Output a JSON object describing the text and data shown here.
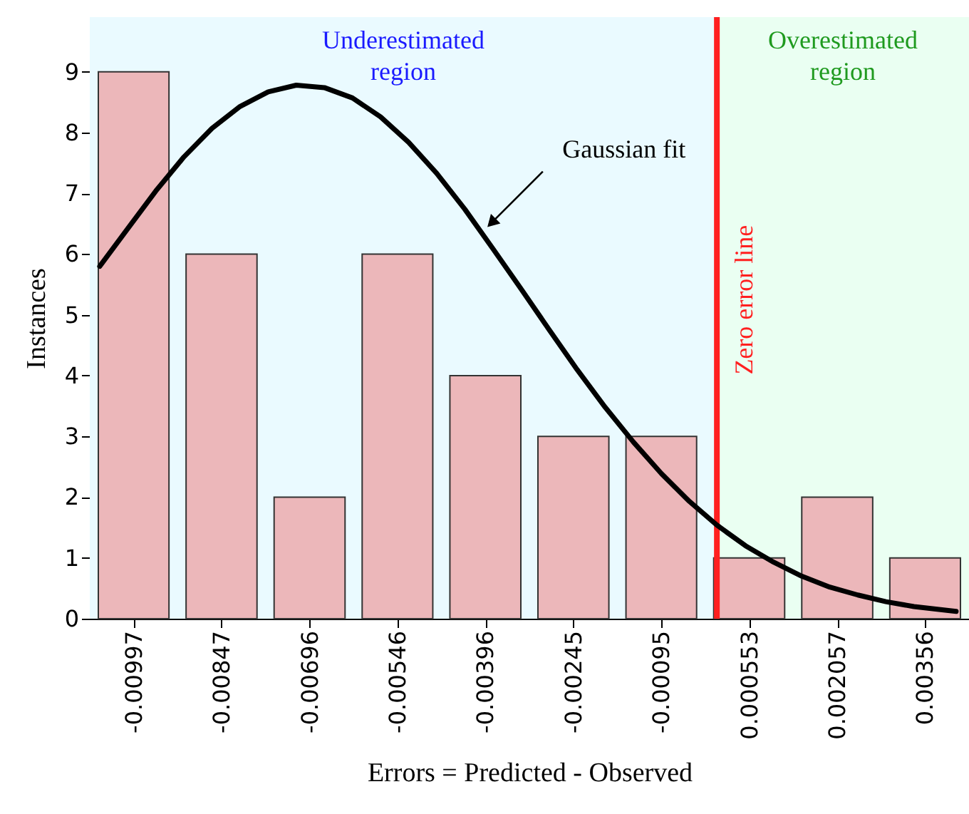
{
  "chart_data": {
    "type": "histogram",
    "xlabel": "Errors = Predicted - Observed",
    "ylabel": "Instances",
    "bins": [
      -0.01072,
      -0.00922,
      -0.007715,
      -0.00621,
      -0.00471,
      -0.003205,
      -0.0017,
      -0.0002,
      0.001305,
      0.00281,
      0.00431
    ],
    "values": [
      9,
      6,
      2,
      6,
      4,
      3,
      3,
      1,
      2,
      1
    ],
    "color": "#ecb7ba",
    "xlim": [
      -0.01072,
      0.00431
    ],
    "ylim": [
      0,
      9.9
    ],
    "xticks": [
      -0.00997,
      -0.00847,
      -0.00696,
      -0.00546,
      -0.00396,
      -0.00245,
      -0.00095,
      0.000553,
      0.002057,
      0.00356
    ],
    "yticks": [
      0,
      1,
      2,
      3,
      4,
      5,
      6,
      7,
      8,
      9
    ],
    "series": [
      {
        "type": "line",
        "color": "#000000",
        "x": [
          -0.01055,
          -0.01007,
          -0.00959,
          -0.00911,
          -0.00863,
          -0.00815,
          -0.00767,
          -0.00719,
          -0.00671,
          -0.00623,
          -0.00575,
          -0.00527,
          -0.00479,
          -0.00431,
          -0.00383,
          -0.00335,
          -0.00287,
          -0.00239,
          -0.00191,
          -0.00143,
          -0.00095,
          -0.00047,
          0.0,
          0.00049,
          0.00097,
          0.00145,
          0.00193,
          0.00241,
          0.00289,
          0.00337,
          0.00409
        ],
        "values": [
          5.8,
          6.42,
          7.04,
          7.6,
          8.07,
          8.43,
          8.67,
          8.78,
          8.74,
          8.57,
          8.26,
          7.84,
          7.33,
          6.74,
          6.09,
          5.43,
          4.76,
          4.1,
          3.48,
          2.91,
          2.39,
          1.93,
          1.54,
          1.2,
          0.93,
          0.7,
          0.52,
          0.39,
          0.28,
          0.2,
          0.12
        ]
      }
    ],
    "annotations": [
      {
        "text": "Gaussian fit",
        "x": -0.00395,
        "y": 6.42
      }
    ],
    "ref_lines": [
      {
        "axis": "x",
        "value": 0,
        "label": "Zero error line",
        "color": "#ff2020"
      }
    ],
    "bands": [
      {
        "axis": "x",
        "from": -0.01072,
        "to": 0,
        "label": "Underestimated\nregion",
        "color": "#eafaff"
      },
      {
        "axis": "x",
        "from": 0,
        "to": 0.00431,
        "label": "Overestimated\nregion",
        "color": "#eafff2"
      }
    ]
  }
}
